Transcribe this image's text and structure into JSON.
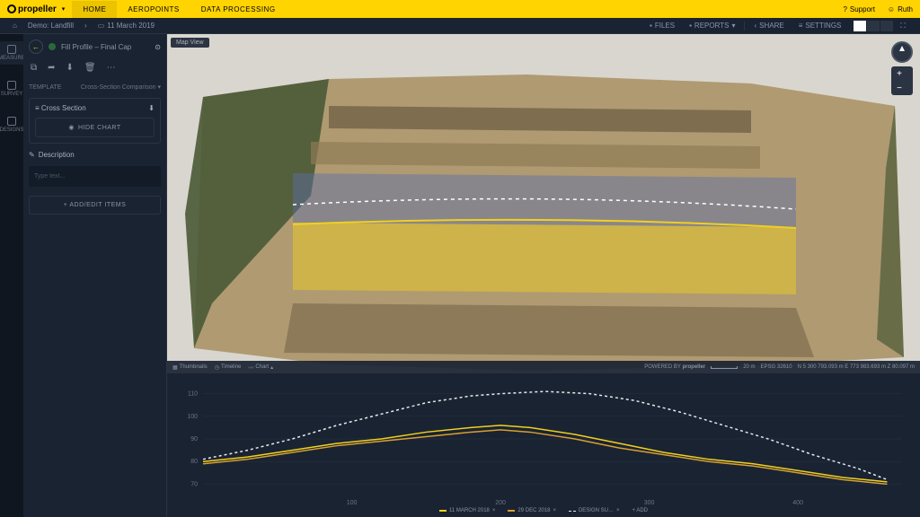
{
  "brand": "propeller",
  "topnav": {
    "items": [
      "HOME",
      "AEROPOINTS",
      "DATA PROCESSING"
    ],
    "active": 0
  },
  "support": "Support",
  "user": "Ruth",
  "breadcrumb": {
    "project": "Demo: Landfill",
    "date": "11 March 2019"
  },
  "secondbar": {
    "files": "FILES",
    "reports": "REPORTS",
    "share": "SHARE",
    "settings": "SETTINGS"
  },
  "rail": [
    {
      "label": "MEASURE"
    },
    {
      "label": "SURVEY"
    },
    {
      "label": "DESIGNS"
    }
  ],
  "panel": {
    "title": "Fill Profile – Final Cap",
    "template_label": "TEMPLATE",
    "template_value": "Cross-Section Comparison",
    "section": "Cross Section",
    "hide_chart": "HIDE CHART",
    "description": "Description",
    "desc_placeholder": "Type text...",
    "add_edit": "+   ADD/EDIT ITEMS"
  },
  "map": {
    "label": "Map View",
    "footer_tabs": {
      "thumbnails": "Thumbnails",
      "timeline": "Timeline",
      "chart": "Chart"
    },
    "powered": "POWERED BY",
    "powered_brand": "propeller",
    "scale": "20 m",
    "epsg": "EPSG 32610",
    "coords": "N  5 300 793.093 m   E  773 983.693 m   Z  80.097 m",
    "colors": {
      "sky": "#d9d6cf",
      "veg": "#4a5a36",
      "dirt_light": "#b09a72",
      "dirt_mid": "#8f7a54",
      "dirt_dark": "#6a5a40",
      "overlay_blue": "rgba(90,110,170,0.45)",
      "overlay_yellow": "rgba(230,200,40,0.55)",
      "line_yellow": "#f0d020",
      "line_white": "#ffffff"
    }
  },
  "chart": {
    "y_ticks": [
      70,
      80,
      90,
      100,
      110
    ],
    "x_ticks": [
      100,
      200,
      300,
      400
    ],
    "xlim": [
      0,
      470
    ],
    "ylim": [
      65,
      115
    ],
    "colors": {
      "bg": "#1a2332",
      "grid": "#2a3442",
      "axis": "#4a5464",
      "s1": "#f0d020",
      "s2": "#d8a030",
      "s3": "#e8e8e8"
    },
    "legend": [
      {
        "label": "11 MARCH 2018",
        "color": "#f0d020",
        "dash": false
      },
      {
        "label": "29 DEC 2018",
        "color": "#d8a030",
        "dash": false
      },
      {
        "label": "DESIGN SU…",
        "color": "#e8e8e8",
        "dash": true
      },
      {
        "label": "+ ADD",
        "color": "",
        "dash": false
      }
    ],
    "series": [
      {
        "color": "#f0d020",
        "dash": false,
        "points": [
          [
            0,
            80
          ],
          [
            30,
            82
          ],
          [
            60,
            85
          ],
          [
            90,
            88
          ],
          [
            120,
            90
          ],
          [
            150,
            93
          ],
          [
            180,
            95
          ],
          [
            200,
            96
          ],
          [
            220,
            95
          ],
          [
            250,
            92
          ],
          [
            280,
            88
          ],
          [
            310,
            84
          ],
          [
            340,
            81
          ],
          [
            370,
            79
          ],
          [
            400,
            76
          ],
          [
            430,
            73
          ],
          [
            460,
            71
          ]
        ]
      },
      {
        "color": "#d8a030",
        "dash": false,
        "points": [
          [
            0,
            79
          ],
          [
            30,
            81
          ],
          [
            60,
            84
          ],
          [
            90,
            87
          ],
          [
            120,
            89
          ],
          [
            150,
            91
          ],
          [
            180,
            93
          ],
          [
            200,
            94
          ],
          [
            220,
            93
          ],
          [
            250,
            90
          ],
          [
            280,
            86
          ],
          [
            310,
            83
          ],
          [
            340,
            80
          ],
          [
            370,
            78
          ],
          [
            400,
            75
          ],
          [
            430,
            72
          ],
          [
            460,
            70
          ]
        ]
      },
      {
        "color": "#e8e8e8",
        "dash": true,
        "points": [
          [
            0,
            81
          ],
          [
            30,
            85
          ],
          [
            60,
            90
          ],
          [
            90,
            96
          ],
          [
            120,
            101
          ],
          [
            150,
            106
          ],
          [
            180,
            109
          ],
          [
            200,
            110
          ],
          [
            230,
            111
          ],
          [
            260,
            110
          ],
          [
            290,
            107
          ],
          [
            320,
            102
          ],
          [
            350,
            96
          ],
          [
            380,
            90
          ],
          [
            410,
            83
          ],
          [
            440,
            77
          ],
          [
            460,
            72
          ]
        ]
      }
    ]
  }
}
